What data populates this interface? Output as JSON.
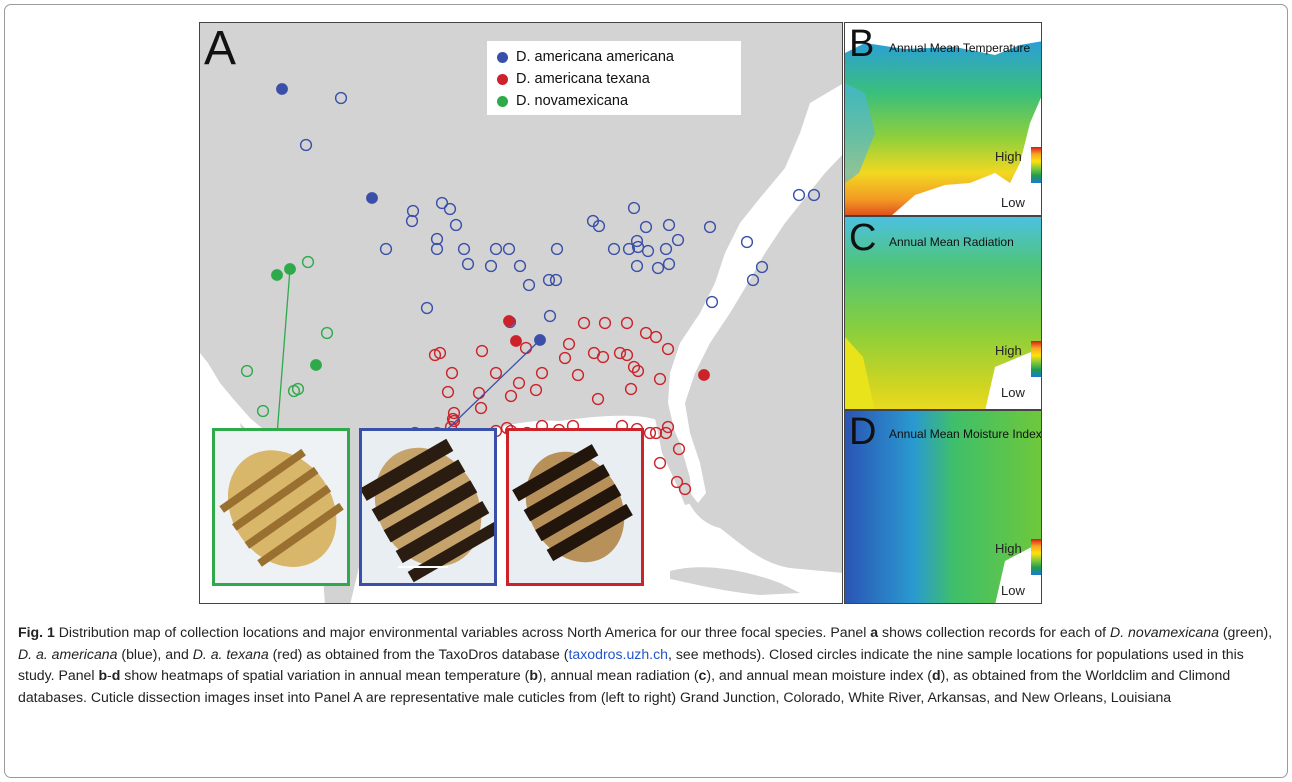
{
  "panels": {
    "a": {
      "letter": "A"
    },
    "b": {
      "letter": "B",
      "title": "Annual Mean Temperature",
      "high": "High",
      "low": "Low"
    },
    "c": {
      "letter": "C",
      "title": "Annual Mean Radiation",
      "high": "High",
      "low": "Low"
    },
    "d": {
      "letter": "D",
      "title": "Annual Mean Moisture Index",
      "high": "High",
      "low": "Low"
    }
  },
  "legend": [
    {
      "label": "D. americana americana",
      "color": "#3a4fa8"
    },
    {
      "label": "D. americana texana",
      "color": "#cc2229"
    },
    {
      "label": "D. novamexicana",
      "color": "#2eaa4a"
    }
  ],
  "colors": {
    "americana": "#3a4fa8",
    "texana": "#cc2229",
    "novamexicana": "#2eaa4a",
    "land": "#d3d3d3",
    "water": "#ffffff"
  },
  "caption": {
    "fig_label": "Fig. 1",
    "parts": [
      " Distribution map of collection locations and major environmental variables across North America for our three focal species. Panel ",
      "a",
      " shows collection records for each of ",
      "D. novamexicana",
      " (green), ",
      "D. a. americana",
      " (blue), and ",
      "D. a. texana",
      " (red) as obtained from the TaxoDros database (",
      "taxodros.uzh.ch",
      ", see methods). Closed circles indicate the nine sample locations for populations used in this study. Panel ",
      "b",
      "-",
      "d",
      " show heatmaps of spatial variation in annual mean temperature (",
      "b",
      "), annual mean radiation (",
      "c",
      "), and annual mean moisture index (",
      "d",
      "), as obtained from the Worldclim and Climond databases. Cuticle dissection images inset into Panel A are representative male cuticles from (left to right) Grand Junction, Colorado, White River, Arkansas, and New Orleans, Louisiana"
    ]
  }
}
